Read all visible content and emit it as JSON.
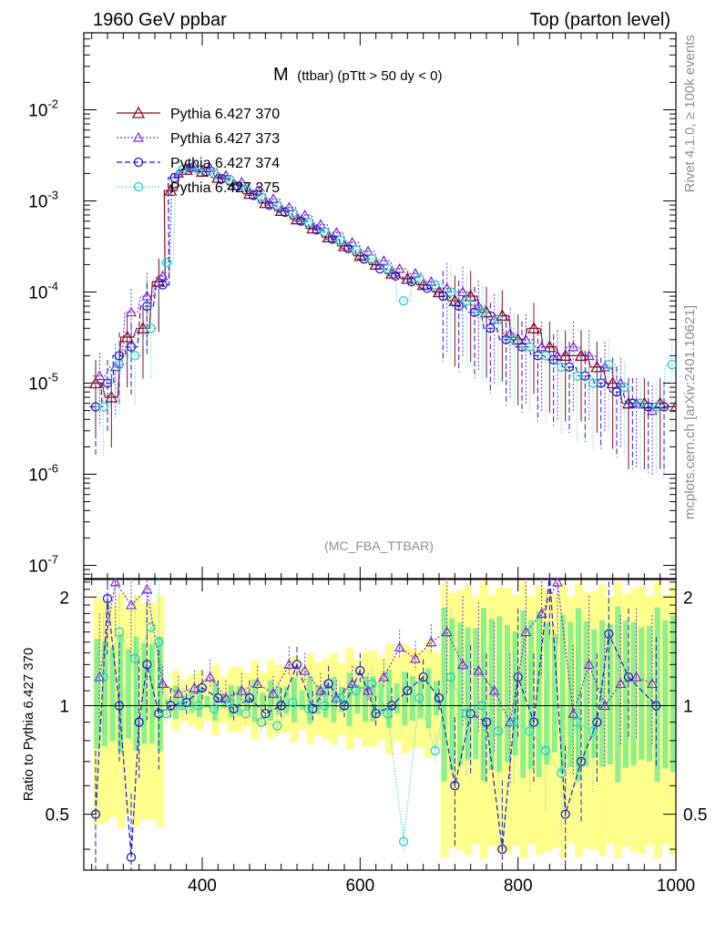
{
  "header": {
    "left": "1960 GeV ppbar",
    "right": "Top (parton level)"
  },
  "side_text": {
    "upper": "Rivet 4.1.0, ≥ 100k events",
    "lower": "mcplots.cern.ch [arXiv:2401.10621]"
  },
  "watermark": "(MC_FBA_TTBAR)",
  "chart_data": {
    "type": "line",
    "title": "M",
    "title_suffix": "(ttbar) (pTtt > 50 dy < 0)",
    "xlabel": "",
    "ylabel_main": "",
    "ylabel_ratio": "Ratio to Pythia 6.427 370",
    "xlim": [
      250,
      1000
    ],
    "ylim_main": [
      7e-08,
      0.07
    ],
    "ylim_ratio": [
      0.35,
      2.25
    ],
    "x_ticks": [
      "400",
      "600",
      "800",
      "1000"
    ],
    "y_ticks_main": [
      {
        "base": "10",
        "exp": "-7",
        "value": 1e-07
      },
      {
        "base": "10",
        "exp": "-6",
        "value": 1e-06
      },
      {
        "base": "10",
        "exp": "-5",
        "value": 1e-05
      },
      {
        "base": "10",
        "exp": "-4",
        "value": 0.0001
      },
      {
        "base": "10",
        "exp": "-3",
        "value": 0.001
      },
      {
        "base": "10",
        "exp": "-2",
        "value": 0.01
      }
    ],
    "y_ticks_ratio": [
      "0.5",
      "1",
      "2"
    ],
    "legend": [
      "Pythia 6.427 370",
      "Pythia 6.427 373",
      "Pythia 6.427 374",
      "Pythia 6.427 375"
    ],
    "series": [
      {
        "name": "Pythia 6.427 370",
        "color": "#8b0a1a",
        "marker": "triangle",
        "dash": "",
        "x": [
          265,
          285,
          305,
          325,
          345,
          360,
          380,
          400,
          420,
          440,
          460,
          480,
          500,
          520,
          540,
          560,
          580,
          600,
          620,
          640,
          660,
          680,
          700,
          720,
          740,
          760,
          780,
          800,
          820,
          840,
          860,
          880,
          900,
          920,
          940,
          960,
          980,
          1000
        ],
        "y": [
          1e-05,
          7e-06,
          3.2e-05,
          4e-05,
          0.00013,
          0.0013,
          0.0022,
          0.0021,
          0.0018,
          0.0015,
          0.0012,
          0.00095,
          0.00078,
          0.00063,
          0.0005,
          0.0004,
          0.00032,
          0.00025,
          0.0002,
          0.00016,
          0.00014,
          0.00012,
          0.0001,
          8e-05,
          9e-05,
          6e-05,
          5.5e-05,
          3e-05,
          4e-05,
          2.5e-05,
          2e-05,
          2e-05,
          1.5e-05,
          1e-05,
          6e-06,
          6e-06,
          6e-06,
          5.5e-06
        ]
      },
      {
        "name": "Pythia 6.427 373",
        "color": "#7a2ad8",
        "marker": "triangle-small",
        "dash": "2,2",
        "x": [
          270,
          290,
          310,
          330,
          350,
          370,
          390,
          410,
          430,
          450,
          470,
          490,
          510,
          530,
          550,
          570,
          590,
          610,
          630,
          650,
          670,
          690,
          710,
          730,
          750,
          770,
          790,
          810,
          830,
          850,
          870,
          890,
          910,
          930,
          950,
          970
        ],
        "y": [
          1.2e-05,
          1.5e-05,
          6e-05,
          9e-05,
          0.00015,
          0.002,
          0.0024,
          0.0023,
          0.0019,
          0.0016,
          0.0013,
          0.00105,
          0.00085,
          0.0007,
          0.00055,
          0.00045,
          0.00035,
          0.00028,
          0.00022,
          0.00018,
          0.00016,
          0.00013,
          0.00011,
          0.0001,
          7e-05,
          5e-05,
          3.5e-05,
          3e-05,
          2.5e-05,
          2e-05,
          2.5e-05,
          2e-05,
          1.5e-05,
          1e-05,
          6e-06,
          5e-06
        ]
      },
      {
        "name": "Pythia 6.427 374",
        "color": "#1a1ac8",
        "marker": "circle",
        "dash": "6,3",
        "x": [
          265,
          280,
          295,
          310,
          330,
          350,
          365,
          385,
          405,
          425,
          445,
          465,
          485,
          505,
          525,
          545,
          565,
          585,
          605,
          625,
          645,
          665,
          685,
          705,
          725,
          745,
          765,
          785,
          805,
          825,
          845,
          865,
          885,
          905,
          925,
          945,
          965,
          985
        ],
        "y": [
          5.5e-06,
          1e-05,
          2e-05,
          2.5e-05,
          7e-05,
          0.00012,
          0.0018,
          0.0023,
          0.0021,
          0.00175,
          0.00145,
          0.00115,
          0.0009,
          0.00075,
          0.0006,
          0.00048,
          0.00038,
          0.0003,
          0.00023,
          0.00018,
          0.00015,
          0.00013,
          0.00011,
          9e-05,
          7e-05,
          6e-05,
          4e-05,
          3e-05,
          2.5e-05,
          2e-05,
          1.8e-05,
          1.5e-05,
          1.2e-05,
          1e-05,
          8e-06,
          6e-06,
          5.5e-06,
          5.5e-06
        ]
      },
      {
        "name": "Pythia 6.427 375",
        "color": "#22cfc8",
        "marker": "circle-cyan",
        "dash": "1,2",
        "x": [
          275,
          295,
          315,
          335,
          355,
          375,
          395,
          415,
          435,
          455,
          475,
          495,
          515,
          535,
          555,
          575,
          595,
          615,
          635,
          655,
          675,
          695,
          715,
          735,
          755,
          775,
          795,
          815,
          835,
          855,
          875,
          895,
          915,
          935,
          955,
          975,
          995
        ],
        "y": [
          5.5e-06,
          1.6e-05,
          2e-05,
          4e-05,
          0.00021,
          0.0022,
          0.0022,
          0.002,
          0.0017,
          0.0014,
          0.0011,
          0.0009,
          0.00073,
          0.00058,
          0.00046,
          0.00037,
          0.00029,
          0.00023,
          0.00018,
          8e-05,
          0.00014,
          0.00012,
          0.0001,
          8e-05,
          6e-05,
          5e-05,
          3e-05,
          2.5e-05,
          2e-05,
          1.5e-05,
          1.2e-05,
          1e-05,
          1.6e-05,
          9e-06,
          6e-06,
          5.5e-06,
          1.6e-05
        ]
      }
    ],
    "ratio_series": [
      {
        "name": "Pythia 6.427 373",
        "color": "#7a2ad8",
        "marker": "triangle-small",
        "dash": "2,2",
        "x": [
          270,
          290,
          310,
          330,
          350,
          370,
          390,
          410,
          430,
          450,
          470,
          490,
          510,
          530,
          550,
          570,
          590,
          610,
          630,
          650,
          670,
          690,
          710,
          730,
          750,
          770,
          790,
          810,
          830,
          850,
          870,
          890,
          910,
          930,
          950,
          970
        ],
        "y": [
          1.2,
          2.2,
          1.9,
          2.1,
          1.15,
          1.08,
          1.12,
          1.2,
          1.05,
          1.1,
          1.15,
          1.08,
          1.3,
          1.25,
          1.1,
          1.05,
          1.15,
          1.1,
          1.2,
          1.45,
          1.35,
          1.5,
          1.6,
          1.3,
          1.25,
          1.1,
          0.9,
          1.6,
          1.8,
          2.2,
          0.95,
          1.3,
          1.0,
          1.15,
          1.2,
          1.15
        ]
      },
      {
        "name": "Pythia 6.427 374",
        "color": "#1a1ac8",
        "marker": "circle",
        "dash": "6,3",
        "x": [
          265,
          280,
          295,
          310,
          320,
          330,
          345,
          360,
          380,
          400,
          420,
          440,
          460,
          480,
          500,
          520,
          540,
          560,
          580,
          600,
          620,
          640,
          660,
          680,
          700,
          720,
          740,
          760,
          780,
          800,
          820,
          840,
          860,
          880,
          900,
          915,
          940,
          975
        ],
        "y": [
          0.5,
          1.98,
          1.0,
          0.38,
          0.9,
          1.3,
          0.95,
          1.0,
          1.02,
          1.12,
          1.05,
          0.98,
          1.05,
          0.95,
          1.0,
          1.3,
          0.98,
          1.15,
          1.0,
          1.25,
          0.95,
          1.0,
          1.1,
          1.2,
          1.05,
          0.6,
          0.95,
          0.9,
          0.4,
          1.2,
          0.9,
          2.3,
          0.5,
          0.7,
          0.9,
          1.58,
          1.2,
          1.0
        ]
      },
      {
        "name": "Pythia 6.427 375",
        "color": "#22cfc8",
        "marker": "circle-cyan",
        "dash": "1,2",
        "x": [
          275,
          295,
          315,
          335,
          345,
          355,
          375,
          395,
          415,
          435,
          455,
          475,
          495,
          515,
          535,
          555,
          575,
          595,
          615,
          635,
          655,
          675,
          695,
          715,
          735,
          755,
          775,
          795,
          815,
          835,
          855,
          875,
          895
        ],
        "y": [
          1.2,
          1.6,
          1.35,
          1.65,
          1.5,
          0.95,
          1.0,
          1.0,
          0.98,
          1.02,
          0.95,
          0.9,
          0.88,
          1.02,
          0.98,
          1.0,
          1.05,
          1.1,
          1.15,
          0.95,
          0.42,
          1.05,
          0.75,
          1.2,
          0.95,
          1.0,
          0.85,
          0.9,
          0.85,
          0.75,
          0.65,
          0.9,
          0.85
        ]
      }
    ],
    "band_outer_color": "#ffff8c",
    "band_inner_color": "#8cf08c"
  }
}
